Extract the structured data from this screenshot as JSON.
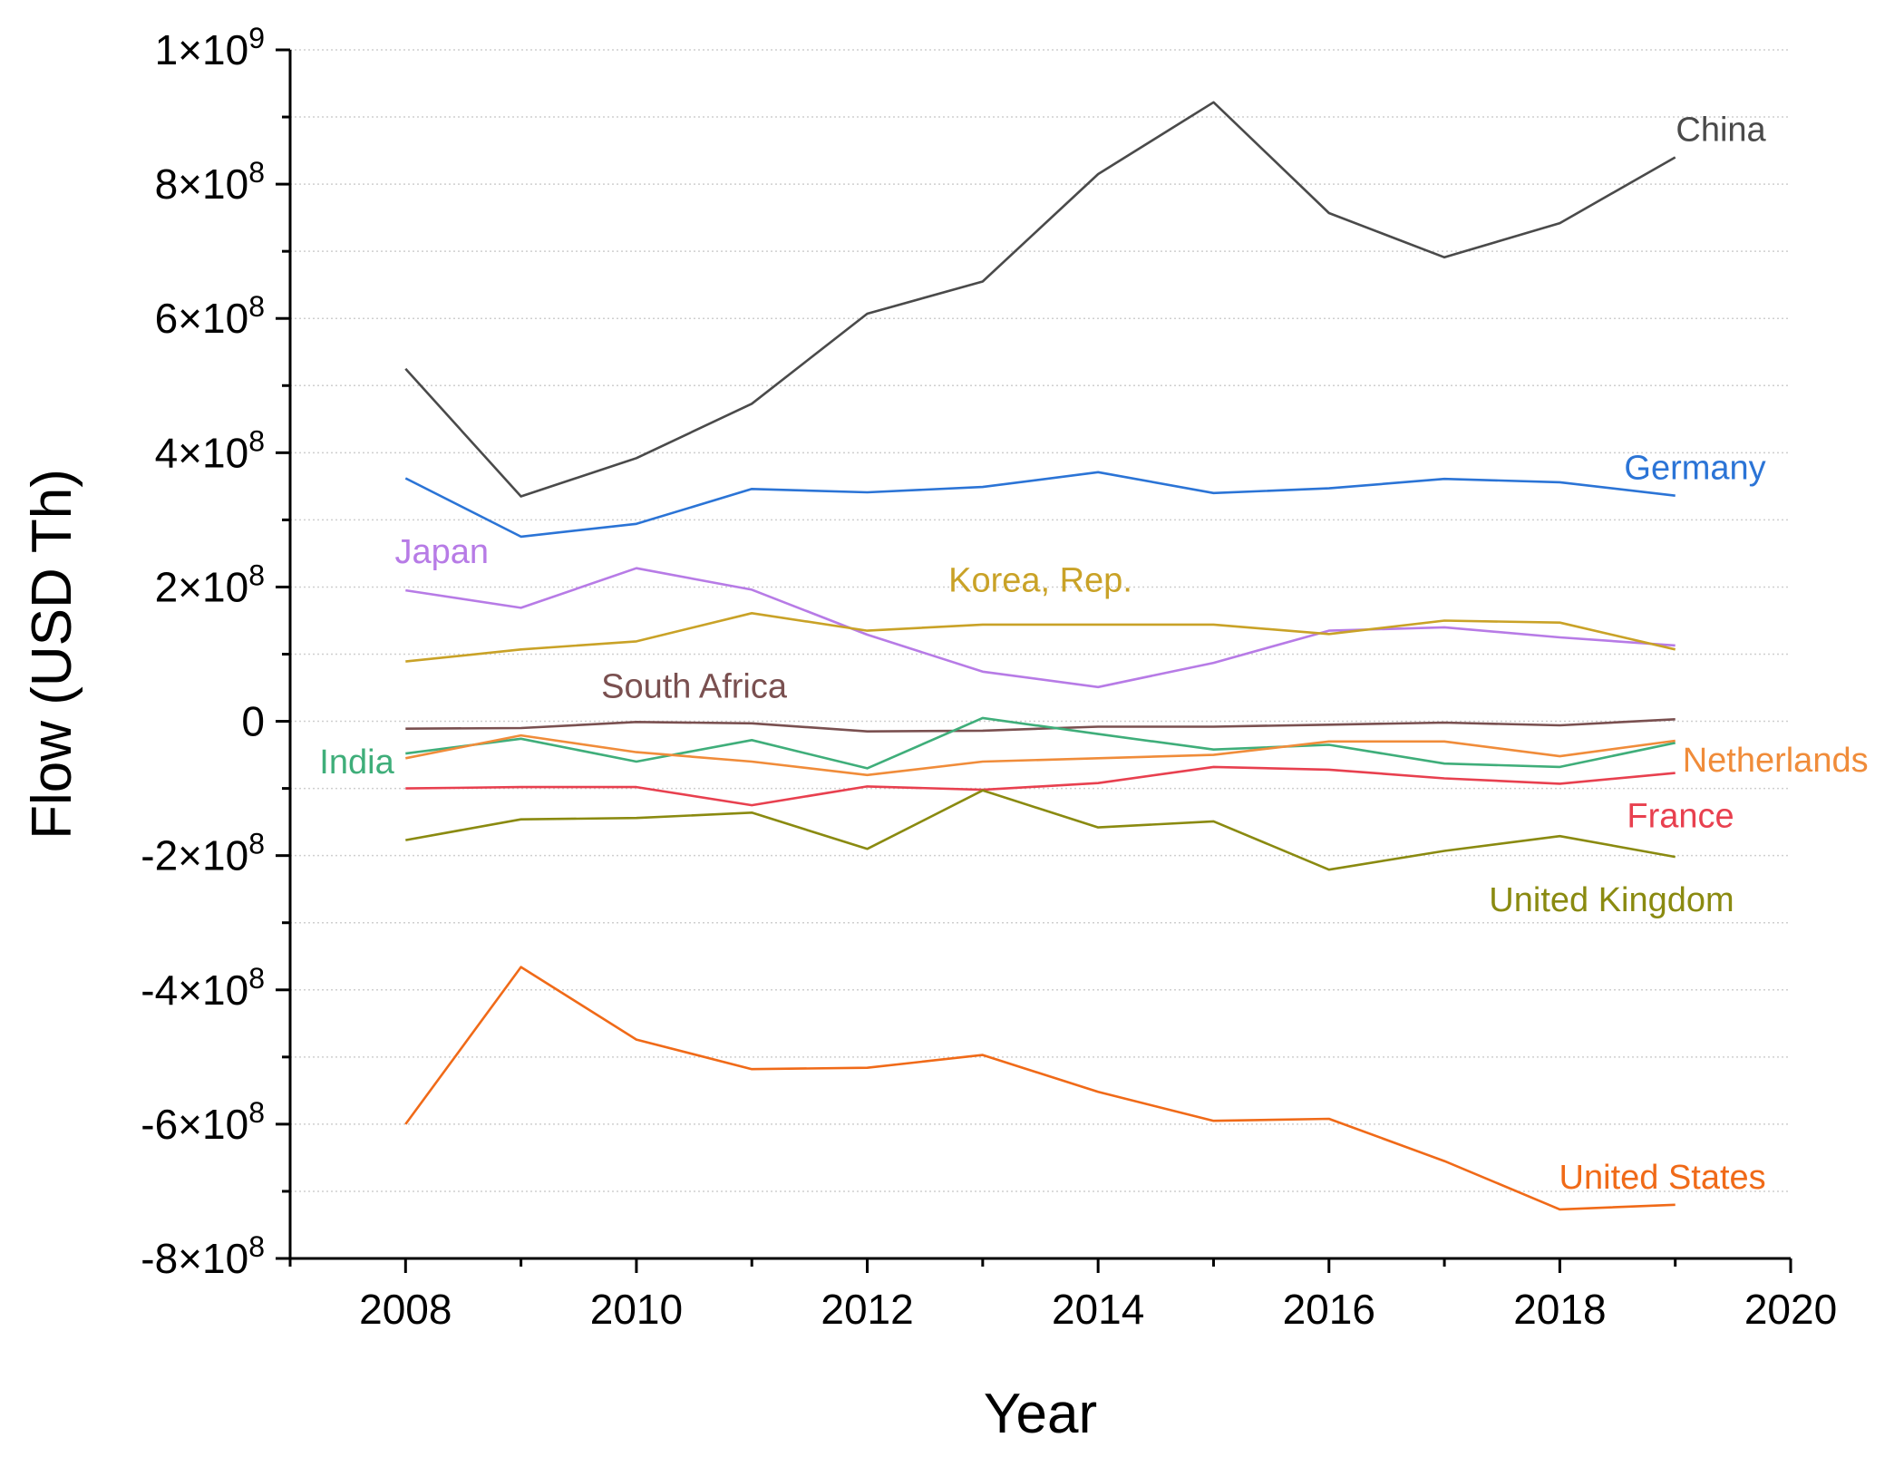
{
  "chart_data": {
    "type": "line",
    "title": "",
    "xlabel": "Year",
    "ylabel": "Flow (USD Th)",
    "xlim": [
      2007,
      2020
    ],
    "ylim": [
      -800000000,
      1000000000
    ],
    "x_ticks": [
      2008,
      2010,
      2012,
      2014,
      2016,
      2018,
      2020
    ],
    "y_ticks": [
      {
        "value": 1000000000,
        "mantissa": "1",
        "exp": "9",
        "neg": false
      },
      {
        "value": 800000000,
        "mantissa": "8",
        "exp": "8",
        "neg": false
      },
      {
        "value": 600000000,
        "mantissa": "6",
        "exp": "8",
        "neg": false
      },
      {
        "value": 400000000,
        "mantissa": "4",
        "exp": "8",
        "neg": false
      },
      {
        "value": 200000000,
        "mantissa": "2",
        "exp": "8",
        "neg": false
      },
      {
        "value": 0,
        "mantissa": "0",
        "exp": "",
        "neg": false
      },
      {
        "value": -200000000,
        "mantissa": "2",
        "exp": "8",
        "neg": true
      },
      {
        "value": -400000000,
        "mantissa": "4",
        "exp": "8",
        "neg": true
      },
      {
        "value": -600000000,
        "mantissa": "6",
        "exp": "8",
        "neg": true
      },
      {
        "value": -800000000,
        "mantissa": "8",
        "exp": "8",
        "neg": true
      }
    ],
    "grid": true,
    "x": [
      2008,
      2009,
      2010,
      2011,
      2012,
      2013,
      2014,
      2015,
      2016,
      2017,
      2018,
      2019
    ],
    "series": [
      {
        "name": "China",
        "color": "#4a4a4a",
        "label_pos": "right-above",
        "values": [
          525000000,
          335000000,
          392000000,
          473000000,
          607000000,
          655000000,
          815000000,
          922000000,
          757000000,
          691000000,
          742000000,
          840000000
        ]
      },
      {
        "name": "Germany",
        "color": "#2b74d6",
        "label_pos": "right-above",
        "values": [
          362000000,
          275000000,
          294000000,
          346000000,
          341000000,
          349000000,
          371000000,
          340000000,
          347000000,
          361000000,
          356000000,
          336000000
        ]
      },
      {
        "name": "Japan",
        "color": "#b77be6",
        "label_pos": "left-above",
        "values": [
          195000000,
          169000000,
          228000000,
          196000000,
          129000000,
          74000000,
          51000000,
          87000000,
          135000000,
          140000000,
          125000000,
          113000000
        ]
      },
      {
        "name": "Korea, Rep.",
        "color": "#c9a227",
        "label_pos": "middle-above",
        "values": [
          89000000,
          107000000,
          119000000,
          161000000,
          135000000,
          144000000,
          144000000,
          144000000,
          130000000,
          150000000,
          147000000,
          107000000
        ]
      },
      {
        "name": "South Africa",
        "color": "#7a5050",
        "label_pos": "middle-above",
        "values": [
          -11000000,
          -10000000,
          -1000000,
          -3000000,
          -15000000,
          -14000000,
          -8000000,
          -8000000,
          -5000000,
          -2000000,
          -6000000,
          3000000
        ]
      },
      {
        "name": "India",
        "color": "#3fae7a",
        "label_pos": "left",
        "values": [
          -48000000,
          -26000000,
          -60000000,
          -28000000,
          -70000000,
          5000000,
          -19000000,
          -42000000,
          -35000000,
          -63000000,
          -68000000,
          -32000000
        ]
      },
      {
        "name": "Netherlands",
        "color": "#f08c3a",
        "label_pos": "right",
        "values": [
          -55000000,
          -21000000,
          -46000000,
          -60000000,
          -80000000,
          -60000000,
          -55000000,
          -50000000,
          -30000000,
          -30000000,
          -52000000,
          -29000000
        ]
      },
      {
        "name": "France",
        "color": "#e8404f",
        "label_pos": "right-below",
        "values": [
          -100000000,
          -98000000,
          -98000000,
          -125000000,
          -97000000,
          -102000000,
          -92000000,
          -68000000,
          -72000000,
          -85000000,
          -93000000,
          -77000000
        ]
      },
      {
        "name": "United Kingdom",
        "color": "#8a8a10",
        "label_pos": "right-below",
        "values": [
          -177000000,
          -146000000,
          -144000000,
          -136000000,
          -190000000,
          -103000000,
          -158000000,
          -149000000,
          -221000000,
          -193000000,
          -171000000,
          -202000000
        ]
      },
      {
        "name": "United States",
        "color": "#f06a18",
        "label_pos": "right-above",
        "values": [
          -600000000,
          -366000000,
          -474000000,
          -518000000,
          -516000000,
          -497000000,
          -552000000,
          -595000000,
          -592000000,
          -655000000,
          -727000000,
          -720000000
        ]
      }
    ]
  }
}
